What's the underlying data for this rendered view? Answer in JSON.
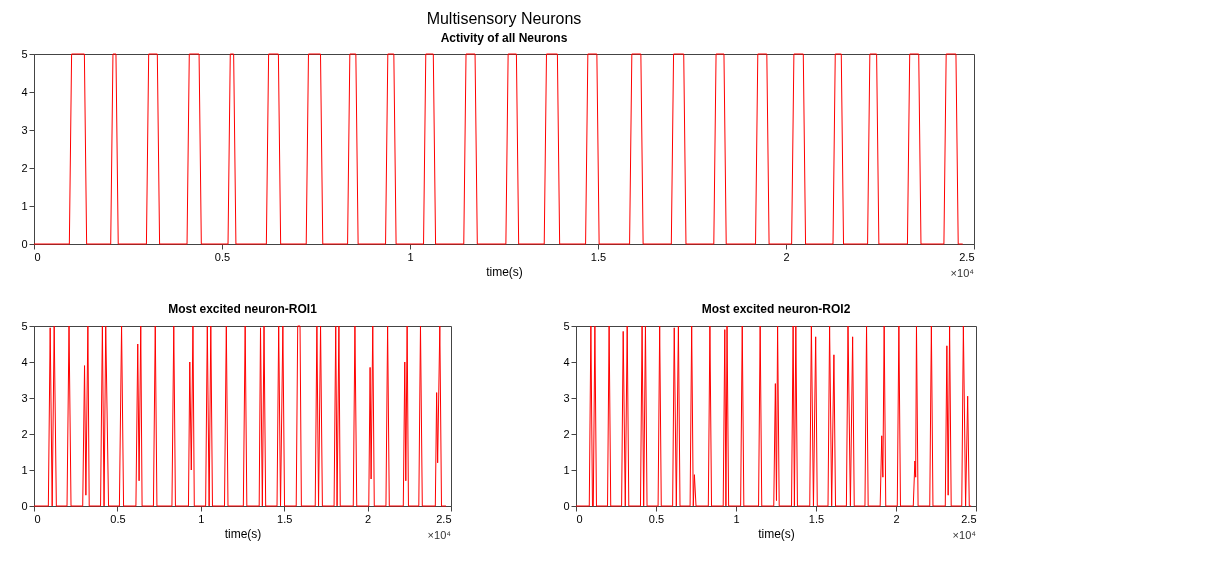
{
  "chart_data": [
    {
      "type": "line",
      "title": "Multisensory Neurons",
      "subtitle": "Activity of all Neurons",
      "xlabel": "time(s)",
      "annotations": [
        "×10⁴"
      ],
      "grid": false,
      "x": [
        0,
        0.094,
        0.1,
        0.134,
        0.14,
        0.204,
        0.21,
        0.218,
        0.224,
        0.299,
        0.305,
        0.328,
        0.334,
        0.407,
        0.413,
        0.439,
        0.445,
        0.516,
        0.522,
        0.531,
        0.537,
        0.618,
        0.624,
        0.65,
        0.656,
        0.724,
        0.73,
        0.762,
        0.768,
        0.834,
        0.84,
        0.856,
        0.862,
        0.935,
        0.941,
        0.957,
        0.963,
        1.036,
        1.042,
        1.062,
        1.068,
        1.143,
        1.149,
        1.173,
        1.179,
        1.255,
        1.261,
        1.283,
        1.289,
        1.357,
        1.363,
        1.392,
        1.398,
        1.467,
        1.473,
        1.497,
        1.503,
        1.584,
        1.59,
        1.614,
        1.62,
        1.695,
        1.701,
        1.728,
        1.734,
        1.808,
        1.814,
        1.835,
        1.841,
        1.919,
        1.925,
        1.949,
        1.955,
        2.015,
        2.021,
        2.046,
        2.052,
        2.125,
        2.131,
        2.147,
        2.153,
        2.217,
        2.223,
        2.241,
        2.247,
        2.323,
        2.329,
        2.353,
        2.359,
        2.42,
        2.426,
        2.452,
        2.458,
        2.47
      ],
      "series": [
        {
          "color": "#ff0000",
          "values": [
            0,
            0,
            5,
            5,
            0,
            0,
            5,
            5,
            0,
            0,
            5,
            5,
            0,
            0,
            5,
            5,
            0,
            0,
            5,
            5,
            0,
            0,
            5,
            5,
            0,
            0,
            5,
            5,
            0,
            0,
            5,
            5,
            0,
            0,
            5,
            5,
            0,
            0,
            5,
            5,
            0,
            0,
            5,
            5,
            0,
            0,
            5,
            5,
            0,
            0,
            5,
            5,
            0,
            0,
            5,
            5,
            0,
            0,
            5,
            5,
            0,
            0,
            5,
            5,
            0,
            0,
            5,
            5,
            0,
            0,
            5,
            5,
            0,
            0,
            5,
            5,
            0,
            0,
            5,
            5,
            0,
            0,
            5,
            5,
            0,
            0,
            5,
            5,
            0,
            0,
            5,
            5,
            0,
            0
          ]
        }
      ],
      "xlim": [
        0,
        2.5
      ],
      "xticks": [
        0,
        0.5,
        1,
        1.5,
        2,
        2.5
      ],
      "ylim": [
        0,
        5
      ],
      "yticks": [
        0,
        1,
        2,
        3,
        4,
        5
      ]
    },
    {
      "type": "line",
      "title": "Most excited neuron-ROI1",
      "xlabel": "time(s)",
      "annotations": [
        "×10⁴"
      ],
      "grid": false,
      "x": [
        0,
        0.086,
        0.097,
        0.109,
        0.121,
        0.134,
        0.198,
        0.21,
        0.222,
        0.292,
        0.303,
        0.311,
        0.323,
        0.331,
        0.399,
        0.41,
        0.42,
        0.43,
        0.447,
        0.512,
        0.525,
        0.537,
        0.611,
        0.622,
        0.63,
        0.64,
        0.648,
        0.716,
        0.727,
        0.737,
        0.827,
        0.838,
        0.848,
        0.926,
        0.934,
        0.943,
        0.953,
        0.961,
        1.029,
        1.039,
        1.05,
        1.06,
        1.07,
        1.142,
        1.153,
        1.163,
        1.255,
        1.266,
        1.276,
        1.35,
        1.358,
        1.369,
        1.379,
        1.389,
        1.457,
        1.467,
        1.478,
        1.492,
        1.502,
        1.572,
        1.581,
        1.595,
        1.603,
        1.686,
        1.696,
        1.706,
        1.718,
        1.729,
        1.799,
        1.809,
        1.817,
        1.828,
        1.836,
        1.914,
        1.924,
        1.935,
        2.007,
        2.015,
        2.021,
        2.031,
        2.04,
        2.11,
        2.12,
        2.13,
        2.214,
        2.223,
        2.229,
        2.237,
        2.245,
        2.307,
        2.317,
        2.328,
        2.406,
        2.414,
        2.42,
        2.433,
        2.443,
        2.47
      ],
      "series": [
        {
          "color": "#ff0000",
          "values": [
            0,
            0,
            4.95,
            0,
            5,
            0,
            0,
            5,
            0,
            0,
            3.9,
            0.3,
            5,
            0,
            0,
            5,
            0,
            5,
            0,
            0,
            5,
            0,
            0,
            4.5,
            0.7,
            5,
            0,
            0,
            5,
            0,
            0,
            5,
            0,
            0,
            4,
            1,
            5,
            0,
            0,
            5,
            0,
            5,
            0,
            0,
            5,
            0,
            0,
            5,
            0,
            0,
            4.95,
            0,
            5,
            0,
            0,
            5,
            0,
            5,
            0,
            0,
            5,
            5,
            0,
            0,
            5,
            0,
            5,
            0,
            0,
            5,
            0,
            5,
            0,
            0,
            5,
            0,
            0,
            3.85,
            0.75,
            5,
            0,
            0,
            5,
            0,
            0,
            4,
            0.7,
            5,
            0,
            0,
            5,
            0,
            0,
            3.15,
            1.2,
            5,
            0,
            0
          ]
        }
      ],
      "xlim": [
        0,
        2.5
      ],
      "xticks": [
        0,
        0.5,
        1,
        1.5,
        2,
        2.5
      ],
      "ylim": [
        0,
        5
      ],
      "yticks": [
        0,
        1,
        2,
        3,
        4,
        5
      ]
    },
    {
      "type": "line",
      "title": "Most excited neuron-ROI2",
      "xlabel": "time(s)",
      "annotations": [
        "×10⁴"
      ],
      "grid": false,
      "x": [
        0,
        0.083,
        0.093,
        0.103,
        0.108,
        0.118,
        0.128,
        0.197,
        0.207,
        0.217,
        0.285,
        0.295,
        0.308,
        0.32,
        0.33,
        0.403,
        0.413,
        0.423,
        0.434,
        0.444,
        0.513,
        0.523,
        0.533,
        0.604,
        0.614,
        0.627,
        0.64,
        0.65,
        0.713,
        0.723,
        0.733,
        0.74,
        0.75,
        0.827,
        0.837,
        0.847,
        0.92,
        0.93,
        0.937,
        0.944,
        0.954,
        1.029,
        1.039,
        1.049,
        1.141,
        1.151,
        1.161,
        1.236,
        1.246,
        1.253,
        1.26,
        1.27,
        1.347,
        1.357,
        1.365,
        1.374,
        1.384,
        1.461,
        1.471,
        1.484,
        1.498,
        1.508,
        1.575,
        1.585,
        1.598,
        1.612,
        1.622,
        1.69,
        1.7,
        1.715,
        1.729,
        1.739,
        1.806,
        1.816,
        1.826,
        1.901,
        1.911,
        1.918,
        1.926,
        1.936,
        2.008,
        2.018,
        2.028,
        2.108,
        2.118,
        2.123,
        2.128,
        2.138,
        2.211,
        2.221,
        2.231,
        2.308,
        2.318,
        2.326,
        2.335,
        2.345,
        2.411,
        2.421,
        2.435,
        2.448,
        2.458,
        2.47
      ],
      "series": [
        {
          "color": "#ff0000",
          "values": [
            0,
            0,
            5,
            0,
            0,
            5,
            0,
            0,
            5,
            0,
            0,
            4.85,
            0,
            5,
            0,
            0,
            5,
            0,
            5,
            0,
            0,
            5,
            0,
            0,
            4.95,
            0,
            5,
            0,
            0,
            5,
            0,
            0.87,
            0,
            0,
            5,
            0,
            0,
            4.9,
            0,
            5,
            0,
            0,
            5,
            0,
            0,
            5,
            0,
            0,
            3.4,
            0.15,
            5,
            0,
            0,
            5,
            0,
            5,
            0,
            0,
            5,
            0,
            4.7,
            0,
            0,
            5,
            0,
            4.2,
            0,
            0,
            5,
            0,
            4.7,
            0,
            0,
            5,
            0,
            0,
            1.95,
            0.8,
            5,
            0,
            0,
            5,
            0,
            0,
            1.25,
            0.8,
            5,
            0,
            0,
            5,
            0,
            0,
            4.45,
            0.3,
            5,
            0,
            0,
            5,
            0,
            3.05,
            0,
            0
          ]
        }
      ],
      "xlim": [
        0,
        2.5
      ],
      "xticks": [
        0,
        0.5,
        1,
        1.5,
        2,
        2.5
      ],
      "ylim": [
        0,
        5
      ],
      "yticks": [
        0,
        1,
        2,
        3,
        4,
        5
      ]
    }
  ]
}
